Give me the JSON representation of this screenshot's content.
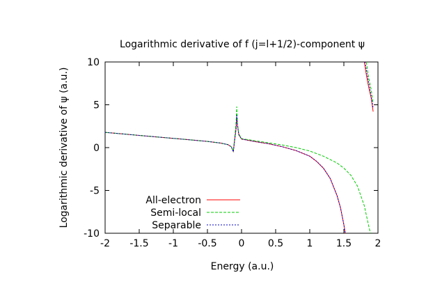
{
  "chart_data": {
    "type": "line",
    "title": "Logarithmic derivative of f (j=l+1/2)-component ψ",
    "xlabel": "Energy (a.u.)",
    "ylabel": "Logarithmic derivative of ψ (a.u.)",
    "xlim": [
      -2,
      2
    ],
    "ylim": [
      -10,
      10
    ],
    "xticks": [
      -2,
      -1.5,
      -1,
      -0.5,
      0,
      0.5,
      1,
      1.5,
      2
    ],
    "xtick_labels": [
      "-2",
      "-1.5",
      "-1",
      "-0.5",
      "0",
      "0.5",
      "1",
      "1.5",
      "2"
    ],
    "yticks": [
      -10,
      -5,
      0,
      5,
      10
    ],
    "ytick_labels": [
      "-10",
      "-5",
      "0",
      "5",
      "10"
    ],
    "grid": false,
    "legend": "bottom-left",
    "series": [
      {
        "name": "All-electron",
        "color": "#ff0000",
        "dash": "solid",
        "segments": [
          [
            [
              -2.0,
              1.78
            ],
            [
              -1.75,
              1.6
            ],
            [
              -1.5,
              1.42
            ],
            [
              -1.25,
              1.25
            ],
            [
              -1.0,
              1.08
            ],
            [
              -0.75,
              0.9
            ],
            [
              -0.5,
              0.72
            ],
            [
              -0.3,
              0.52
            ],
            [
              -0.2,
              0.35
            ],
            [
              -0.15,
              0.1
            ],
            [
              -0.12,
              -0.45
            ],
            [
              -0.1,
              1.0
            ],
            [
              -0.08,
              2.3
            ],
            [
              -0.07,
              3.6
            ],
            [
              -0.06,
              2.6
            ],
            [
              -0.04,
              1.5
            ],
            [
              0.0,
              1.0
            ],
            [
              0.2,
              0.7
            ],
            [
              0.4,
              0.45
            ],
            [
              0.6,
              0.1
            ],
            [
              0.8,
              -0.35
            ],
            [
              1.0,
              -1.0
            ],
            [
              1.1,
              -1.6
            ],
            [
              1.2,
              -2.4
            ],
            [
              1.3,
              -3.6
            ],
            [
              1.4,
              -5.6
            ],
            [
              1.45,
              -7.0
            ],
            [
              1.5,
              -9.0
            ],
            [
              1.52,
              -10.0
            ]
          ],
          [
            [
              1.8,
              10.0
            ],
            [
              1.83,
              8.5
            ],
            [
              1.86,
              7.2
            ],
            [
              1.9,
              5.8
            ],
            [
              1.93,
              4.2
            ]
          ]
        ]
      },
      {
        "name": "Semi-local",
        "color": "#00cc00",
        "dash": "dashed",
        "segments": [
          [
            [
              -2.0,
              1.78
            ],
            [
              -1.75,
              1.6
            ],
            [
              -1.5,
              1.42
            ],
            [
              -1.25,
              1.25
            ],
            [
              -1.0,
              1.08
            ],
            [
              -0.75,
              0.9
            ],
            [
              -0.5,
              0.72
            ],
            [
              -0.3,
              0.52
            ],
            [
              -0.2,
              0.35
            ],
            [
              -0.15,
              0.1
            ],
            [
              -0.12,
              -0.4
            ],
            [
              -0.1,
              1.2
            ],
            [
              -0.08,
              3.0
            ],
            [
              -0.07,
              4.8
            ],
            [
              -0.06,
              2.8
            ],
            [
              -0.04,
              1.6
            ],
            [
              0.0,
              1.05
            ],
            [
              0.2,
              0.8
            ],
            [
              0.4,
              0.55
            ],
            [
              0.6,
              0.3
            ],
            [
              0.8,
              0.0
            ],
            [
              1.0,
              -0.4
            ],
            [
              1.2,
              -1.0
            ],
            [
              1.4,
              -1.8
            ],
            [
              1.5,
              -2.4
            ],
            [
              1.6,
              -3.2
            ],
            [
              1.7,
              -4.5
            ],
            [
              1.8,
              -6.8
            ],
            [
              1.86,
              -9.0
            ],
            [
              1.89,
              -10.0
            ]
          ],
          [
            [
              1.83,
              10.0
            ],
            [
              1.86,
              8.3
            ],
            [
              1.9,
              6.8
            ],
            [
              1.93,
              5.2
            ]
          ]
        ]
      },
      {
        "name": "Separable",
        "color": "#0000cc",
        "dash": "dotted",
        "segments": [
          [
            [
              -2.0,
              1.78
            ],
            [
              -1.75,
              1.6
            ],
            [
              -1.5,
              1.42
            ],
            [
              -1.25,
              1.25
            ],
            [
              -1.0,
              1.08
            ],
            [
              -0.75,
              0.9
            ],
            [
              -0.5,
              0.72
            ],
            [
              -0.3,
              0.52
            ],
            [
              -0.2,
              0.35
            ],
            [
              -0.15,
              0.1
            ],
            [
              -0.12,
              -0.5
            ],
            [
              -0.1,
              0.9
            ],
            [
              -0.08,
              2.2
            ],
            [
              -0.07,
              3.8
            ],
            [
              -0.06,
              2.7
            ],
            [
              -0.04,
              1.5
            ],
            [
              0.0,
              1.0
            ],
            [
              0.2,
              0.7
            ],
            [
              0.4,
              0.45
            ],
            [
              0.6,
              0.1
            ],
            [
              0.8,
              -0.35
            ],
            [
              1.0,
              -1.0
            ],
            [
              1.1,
              -1.6
            ],
            [
              1.2,
              -2.4
            ],
            [
              1.3,
              -3.6
            ],
            [
              1.4,
              -5.6
            ],
            [
              1.45,
              -7.0
            ],
            [
              1.5,
              -9.0
            ],
            [
              1.52,
              -10.0
            ]
          ],
          [
            [
              1.81,
              10.0
            ],
            [
              1.84,
              8.6
            ],
            [
              1.87,
              7.3
            ],
            [
              1.9,
              6.0
            ],
            [
              1.93,
              4.6
            ]
          ]
        ]
      }
    ]
  }
}
